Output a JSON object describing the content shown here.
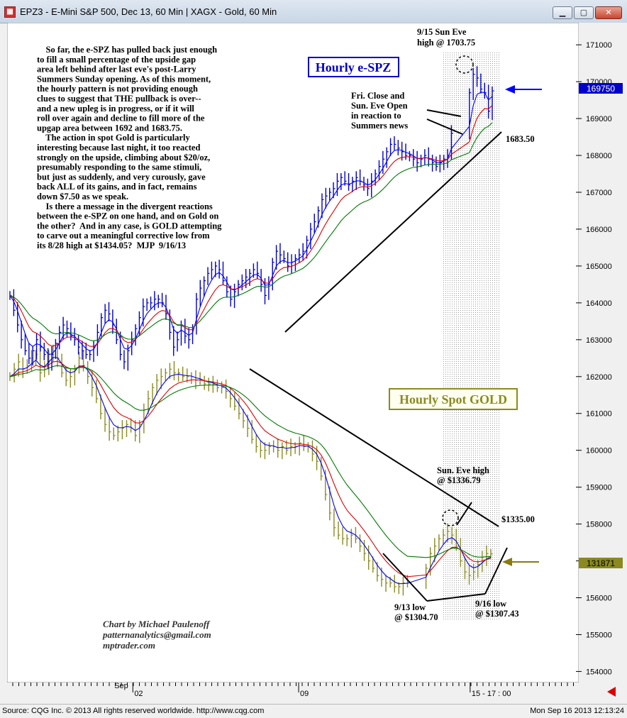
{
  "window": {
    "title": "EPZ3 - E-Mini S&P 500, Dec 13, 60 Min   |   XAGX - Gold, 60 Min",
    "icon": "chart-app-icon"
  },
  "status": {
    "left": "Source: CQG Inc. © 2013 All rights reserved worldwide. http://www.cqg.com",
    "right": "Mon Sep 16 2013 12:13:24"
  },
  "commentary": [
    "    So far, the e-SPZ has pulled back just enough",
    "to fill a small percentage of the upside gap",
    "area left behind after last eve's post-Larry",
    "Summers Sunday opening. As of this moment,",
    "the hourly pattern is not providing enough",
    "clues to suggest that THE pullback is over--",
    "and a new upleg is in progress, or if it will",
    "roll over again and decline to fill more of the",
    "upgap area between 1692 and 1683.75.",
    "    The action in spot Gold is particularly",
    "interesting because last night, it too reacted",
    "strongly on the upside, climbing about $20/oz,",
    "presumably responding to the same stimuli,",
    "but just as suddenly, and very curously, gave",
    "back ALL of its gains, and in fact, remains",
    "down $7.50 as we speak.",
    "    Is there a message in the divergent reactions",
    "between the e-SPZ on one hand, and on Gold on",
    "the other?  And in any case, is GOLD attempting",
    "to carve out a meaningful corrective low from",
    "its 8/28 high at $1434.05?  MJP  9/16/13"
  ],
  "labels": {
    "espz_box": "Hourly e-SPZ",
    "gold_box": "Hourly Spot GOLD",
    "sun_eve_high_1": "9/15 Sun Eve",
    "sun_eve_high_2": "high @ 1703.75",
    "fri_close_1": "Fri. Close and",
    "fri_close_2": "Sun. Eve Open",
    "fri_close_3": "in reaction to",
    "fri_close_4": "Summers news",
    "trend_1683": "1683.50",
    "gold_high_1": "Sun. Eve high",
    "gold_high_2": "@ $1336.79",
    "gold_1335": "$1335.00",
    "low_913_1": "9/13 low",
    "low_913_2": "@ $1304.70",
    "low_916_1": "9/16 low",
    "low_916_2": "@ $1307.43",
    "credit_1": "Chart by Michael Paulenoff",
    "credit_2": "patternanalytics@gmail.com",
    "credit_3": "mptrader.com"
  },
  "colors": {
    "espz_bars": "#0000cc",
    "gold_bars": "#8a8a20",
    "ma_blue": "#0000ff",
    "ma_red": "#dd0000",
    "ma_green": "#007a00",
    "gold_box": "#8a8a20",
    "espz_box": "#0000cc",
    "price_tag_espz": "#0000cc",
    "price_tag_gold": "#8a8a20",
    "arrow_espz": "#0000ff",
    "arrow_gold": "#8a7a10"
  },
  "chart_data": {
    "type": "candlestick-bars",
    "title": "",
    "y_axis": {
      "min": 1537,
      "max": 1716,
      "ticks": [
        1710,
        1700,
        1690,
        1680,
        1670,
        1660,
        1650,
        1640,
        1630,
        1620,
        1610,
        1600,
        1590,
        1580,
        1570,
        1560,
        1550,
        1540
      ],
      "tick_labels": [
        "171000",
        "170000",
        "169000",
        "168000",
        "167000",
        "166000",
        "165000",
        "164000",
        "163000",
        "162000",
        "161000",
        "160000",
        "159000",
        "158000",
        "157000",
        "156000",
        "155000",
        "154000"
      ]
    },
    "x_axis": {
      "ticks": [
        {
          "label": "Sep",
          "pos": 0.2
        },
        {
          "label": "02",
          "pos": 0.22
        },
        {
          "label": "09",
          "pos": 0.51
        },
        {
          "label": "15 - 17 : 00",
          "pos": 0.81
        }
      ]
    },
    "price_tags": [
      {
        "series": "e-SPZ",
        "value": "169750",
        "y": 1697.5
      },
      {
        "series": "GOLD",
        "value": "131871",
        "y": 1571.5
      }
    ],
    "series": [
      {
        "name": "Hourly e-SPZ",
        "closes": [
          1642,
          1638,
          1634,
          1630,
          1627,
          1625,
          1627,
          1630,
          1628,
          1626,
          1624,
          1626,
          1629,
          1632,
          1634,
          1633,
          1631,
          1630,
          1628,
          1627,
          1626,
          1626,
          1628,
          1632,
          1636,
          1638,
          1637,
          1634,
          1630,
          1626,
          1624,
          1627,
          1630,
          1633,
          1636,
          1639,
          1640,
          1640,
          1641,
          1641,
          1640,
          1637,
          1632,
          1628,
          1630,
          1634,
          1631,
          1630,
          1633,
          1641,
          1644,
          1646,
          1648,
          1649,
          1650,
          1649,
          1646,
          1643,
          1641,
          1643,
          1645,
          1646,
          1647,
          1648,
          1649,
          1648,
          1645,
          1642,
          1645,
          1651,
          1654,
          1653,
          1652,
          1650,
          1651,
          1652,
          1653,
          1654,
          1657,
          1660,
          1662,
          1665,
          1668,
          1669,
          1670,
          1671,
          1673,
          1674,
          1673,
          1672,
          1673,
          1674,
          1673,
          1672,
          1671,
          1673,
          1675,
          1677,
          1679,
          1681,
          1683,
          1683,
          1682,
          1681,
          1680,
          1680,
          1679,
          1678,
          1679,
          1680,
          1679,
          1678,
          1677,
          1678,
          1679,
          1680,
          1686,
          1697,
          1702,
          1701,
          1698,
          1697,
          1692,
          1697.5
        ]
      },
      {
        "name": "Hourly Spot GOLD",
        "closes": [
          1620,
          1622,
          1624,
          1622,
          1623,
          1625,
          1626,
          1621,
          1622,
          1626,
          1627,
          1625,
          1621,
          1619,
          1620,
          1622,
          1625,
          1623,
          1620,
          1617,
          1614,
          1610,
          1607,
          1605,
          1604,
          1605,
          1606,
          1607,
          1606,
          1604,
          1607,
          1611,
          1614,
          1617,
          1619,
          1620,
          1621,
          1622,
          1621,
          1621,
          1620,
          1620,
          1620,
          1619,
          1619,
          1618,
          1618,
          1618,
          1617,
          1617,
          1616,
          1614,
          1612,
          1610,
          1608,
          1606,
          1603,
          1601,
          1600,
          1600,
          1601,
          1601,
          1600,
          1601,
          1600,
          1601,
          1601,
          1602,
          1601,
          1601,
          1599,
          1597,
          1593,
          1588,
          1583,
          1579,
          1577,
          1576,
          1576,
          1577,
          1576,
          1574,
          1572,
          1570,
          1568,
          1566,
          1565,
          1564,
          1564,
          1563,
          1563,
          1564,
          1564,
          1568,
          1572,
          1574,
          1576,
          1577,
          1578,
          1577,
          1574,
          1570,
          1567,
          1566,
          1567,
          1569,
          1571,
          1572,
          1571.9
        ]
      }
    ]
  }
}
